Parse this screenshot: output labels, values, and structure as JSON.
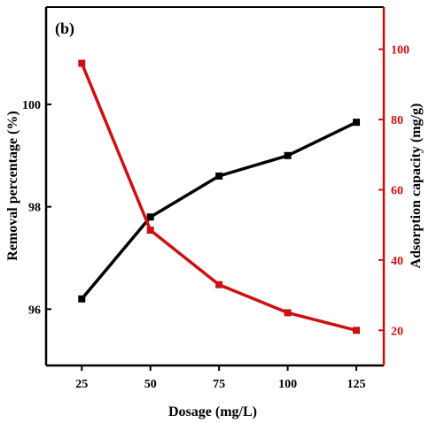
{
  "chart_data": {
    "type": "line",
    "panel_label": "(b)",
    "x": [
      25,
      50,
      75,
      100,
      125
    ],
    "x_ticks": [
      "25",
      "50",
      "75",
      "100",
      "125"
    ],
    "xlabel": "Dosage (mg/L)",
    "xlim": [
      12,
      135
    ],
    "left_axis": {
      "label": "Removal percentage (%)",
      "ylim": [
        94.9,
        101.9
      ],
      "ticks": [
        "96",
        "98",
        "100"
      ],
      "tick_values": [
        96,
        98,
        100
      ],
      "color": "#000000"
    },
    "right_axis": {
      "label": "Adsorption capacity (mg/g)",
      "ylim": [
        10,
        112
      ],
      "ticks": [
        "20",
        "40",
        "60",
        "80",
        "100"
      ],
      "tick_values": [
        20,
        40,
        60,
        80,
        100
      ],
      "color": "#cc1111"
    },
    "series": [
      {
        "axis": "left",
        "values": [
          96.2,
          97.8,
          98.6,
          99.0,
          99.65
        ],
        "color": "#000000"
      },
      {
        "axis": "right",
        "values": [
          96,
          48.5,
          33,
          25,
          20
        ],
        "color": "#cc1111"
      }
    ],
    "grid": false,
    "legend": "none"
  }
}
